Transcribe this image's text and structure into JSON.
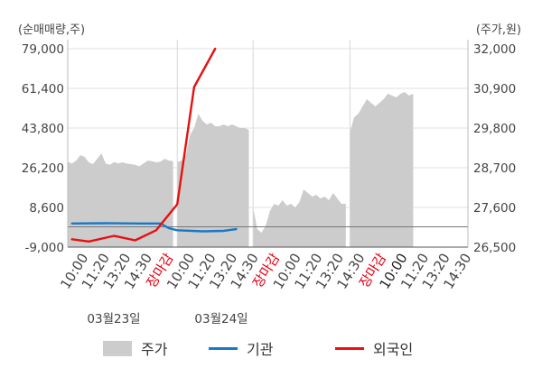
{
  "units": {
    "left": "(순매매량,주)",
    "right": "(주가,원)"
  },
  "chart_data": {
    "type": "line",
    "left_axis": {
      "ticks": [
        "79,000",
        "61,400",
        "43,800",
        "26,200",
        "8,600",
        "-9,000"
      ],
      "ylim": [
        -9000,
        79000
      ]
    },
    "right_axis": {
      "ticks": [
        "32,000",
        "30,900",
        "29,800",
        "28,700",
        "27,600",
        "26,500"
      ],
      "ylim": [
        26500,
        32000
      ]
    },
    "x_ticks": [
      {
        "label": "10:00",
        "color": "#444444"
      },
      {
        "label": "11:20",
        "color": "#444444"
      },
      {
        "label": "13:20",
        "color": "#444444"
      },
      {
        "label": "14:30",
        "color": "#444444"
      },
      {
        "label": "장마감",
        "color": "#e60012"
      },
      {
        "label": "10:00",
        "color": "#444444"
      },
      {
        "label": "11:20",
        "color": "#444444"
      },
      {
        "label": "13:20",
        "color": "#444444"
      },
      {
        "label": "14:30",
        "color": "#444444"
      },
      {
        "label": "장마감",
        "color": "#e60012"
      },
      {
        "label": "10:00",
        "color": "#444444"
      },
      {
        "label": "11:20",
        "color": "#444444"
      },
      {
        "label": "13:20",
        "color": "#444444"
      },
      {
        "label": "14:30",
        "color": "#444444"
      },
      {
        "label": "장마감",
        "color": "#e60012"
      },
      {
        "label": "10:00",
        "color": "#222222"
      },
      {
        "label": "11:20",
        "color": "#444444"
      },
      {
        "label": "13:20",
        "color": "#444444"
      },
      {
        "label": "14:30",
        "color": "#444444"
      }
    ],
    "dates": [
      "03월23일",
      "03월24일"
    ],
    "series": [
      {
        "name": "주가",
        "axis": "right",
        "kind": "area",
        "color": "#cccccc",
        "segments": [
          [
            [
              0,
              28860
            ],
            [
              1,
              28820
            ],
            [
              2,
              28900
            ],
            [
              3,
              29050
            ],
            [
              4,
              29000
            ],
            [
              5,
              28850
            ],
            [
              6,
              28800
            ],
            [
              7,
              28950
            ],
            [
              8,
              29100
            ],
            [
              9,
              28820
            ],
            [
              10,
              28780
            ],
            [
              11,
              28860
            ],
            [
              12,
              28820
            ],
            [
              13,
              28850
            ],
            [
              14,
              28820
            ],
            [
              15,
              28800
            ],
            [
              16,
              28780
            ],
            [
              17,
              28740
            ],
            [
              18,
              28820
            ],
            [
              19,
              28900
            ],
            [
              20,
              28880
            ],
            [
              21,
              28850
            ],
            [
              22,
              28870
            ],
            [
              23,
              28950
            ],
            [
              24,
              28900
            ],
            [
              25,
              28880
            ]
          ],
          [
            [
              26,
              28860
            ],
            [
              27,
              28900
            ],
            [
              28,
              29050
            ],
            [
              29,
              29600
            ],
            [
              30,
              29800
            ],
            [
              31,
              30200
            ],
            [
              32,
              30000
            ],
            [
              33,
              29900
            ],
            [
              34,
              29950
            ],
            [
              35,
              29850
            ],
            [
              36,
              29850
            ],
            [
              37,
              29900
            ],
            [
              38,
              29850
            ],
            [
              39,
              29900
            ],
            [
              40,
              29850
            ],
            [
              41,
              29800
            ],
            [
              42,
              29800
            ],
            [
              43,
              29750
            ]
          ],
          [
            [
              44,
              27600
            ],
            [
              45,
              27000
            ],
            [
              46,
              26900
            ],
            [
              47,
              27100
            ],
            [
              48,
              27500
            ],
            [
              49,
              27700
            ],
            [
              50,
              27650
            ],
            [
              51,
              27800
            ],
            [
              52,
              27650
            ],
            [
              53,
              27700
            ],
            [
              54,
              27600
            ],
            [
              55,
              27750
            ],
            [
              56,
              28100
            ],
            [
              57,
              28000
            ],
            [
              58,
              27900
            ],
            [
              59,
              27950
            ],
            [
              60,
              27850
            ],
            [
              61,
              27900
            ],
            [
              62,
              27800
            ],
            [
              63,
              28000
            ],
            [
              64,
              27850
            ],
            [
              65,
              27700
            ],
            [
              66,
              27700
            ]
          ],
          [
            [
              67,
              29700
            ],
            [
              68,
              30100
            ],
            [
              69,
              30200
            ],
            [
              70,
              30400
            ],
            [
              71,
              30600
            ],
            [
              72,
              30500
            ],
            [
              73,
              30400
            ],
            [
              74,
              30500
            ],
            [
              75,
              30600
            ],
            [
              76,
              30750
            ],
            [
              77,
              30700
            ],
            [
              78,
              30650
            ],
            [
              79,
              30750
            ],
            [
              80,
              30800
            ],
            [
              81,
              30700
            ],
            [
              82,
              30750
            ]
          ]
        ]
      },
      {
        "name": "기관",
        "axis": "left",
        "kind": "line",
        "color": "#1878c8",
        "points": [
          [
            1,
            1500
          ],
          [
            9,
            1600
          ],
          [
            17,
            1500
          ],
          [
            22,
            1500
          ],
          [
            24,
            -600
          ],
          [
            26,
            -1500
          ],
          [
            32,
            -2000
          ],
          [
            37,
            -1800
          ],
          [
            40,
            -1000
          ]
        ]
      },
      {
        "name": "외국인",
        "axis": "left",
        "kind": "line",
        "color": "#e81010",
        "points": [
          [
            1,
            -5500
          ],
          [
            5,
            -6500
          ],
          [
            11,
            -4000
          ],
          [
            16,
            -6000
          ],
          [
            21,
            -1500
          ],
          [
            26,
            10000
          ],
          [
            30,
            62000
          ],
          [
            35,
            79000
          ]
        ]
      }
    ]
  },
  "legend": [
    {
      "label": "주가",
      "kind": "area",
      "color": "#cccccc"
    },
    {
      "label": "기관",
      "kind": "line",
      "color": "#1878c8"
    },
    {
      "label": "외국인",
      "kind": "line",
      "color": "#e81010"
    }
  ]
}
